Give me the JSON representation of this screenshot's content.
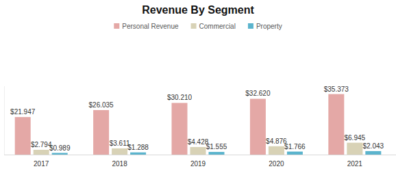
{
  "chart_data": {
    "type": "bar",
    "title": "Revenue By Segment",
    "categories": [
      "2017",
      "2018",
      "2019",
      "2020",
      "2021"
    ],
    "series": [
      {
        "name": "Personal Revenue",
        "color": "#e4a8a6",
        "values": [
          21.947,
          26.035,
          30.21,
          32.62,
          35.373
        ],
        "value_labels": [
          "$21.947",
          "$26.035",
          "$30.210",
          "$32.620",
          "$35.373"
        ]
      },
      {
        "name": "Commercial",
        "color": "#d8d2b6",
        "values": [
          2.794,
          3.611,
          4.428,
          4.876,
          6.945
        ],
        "value_labels": [
          "$2.794",
          "$3.611",
          "$4.428",
          "$4.876",
          "$6.945"
        ]
      },
      {
        "name": "Property",
        "color": "#5bb4cd",
        "values": [
          0.989,
          1.288,
          1.555,
          1.766,
          2.043
        ],
        "value_labels": [
          "$0.989",
          "$1.288",
          "$1.555",
          "$1.766",
          "$2.043"
        ]
      }
    ],
    "ylim": [
      0,
      40
    ],
    "legend": "top",
    "data_labels": true,
    "tick_labels": "x",
    "grid": false
  }
}
